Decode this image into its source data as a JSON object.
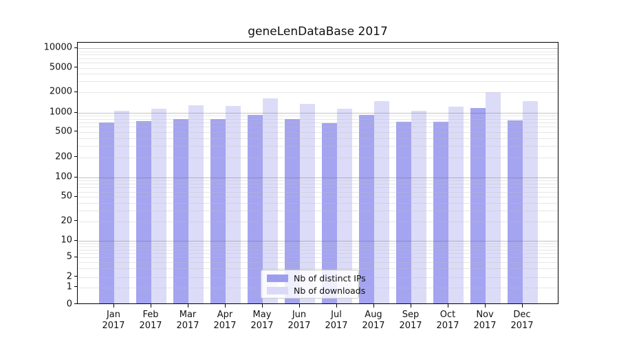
{
  "title": "geneLenDataBase 2017",
  "legend": {
    "items": [
      {
        "label": "Nb of distinct IPs",
        "color": "#9d9df0"
      },
      {
        "label": "Nb of downloads",
        "color": "#dadaf8"
      }
    ]
  },
  "colors": {
    "ips_bar": "#a4a4f1",
    "downloads_bar": "#dcdcf9",
    "grid_major": "#b0b0b0",
    "grid_minor": "#e8e8e8",
    "axis": "#000000"
  },
  "chart_data": {
    "type": "bar",
    "title": "geneLenDataBase 2017",
    "categories": [
      "Jan",
      "Feb",
      "Mar",
      "Apr",
      "May",
      "Jun",
      "Jul",
      "Aug",
      "Sep",
      "Oct",
      "Nov",
      "Dec"
    ],
    "year": "2017",
    "series": [
      {
        "name": "Nb of distinct IPs",
        "values": [
          670,
          715,
          765,
          765,
          885,
          770,
          660,
          890,
          700,
          690,
          1130,
          730
        ]
      },
      {
        "name": "Nb of downloads",
        "values": [
          1030,
          1120,
          1240,
          1220,
          1570,
          1290,
          1110,
          1420,
          1030,
          1190,
          1940,
          1420
        ]
      }
    ],
    "yscale": "symlog",
    "yticks": [
      0,
      1,
      2,
      5,
      10,
      20,
      50,
      100,
      200,
      500,
      1000,
      2000,
      5000,
      10000
    ],
    "ylim": [
      0,
      13000
    ],
    "xlabel": "",
    "ylabel": "",
    "grid": true,
    "grid_on_top": true,
    "legend_position": "lower center"
  }
}
